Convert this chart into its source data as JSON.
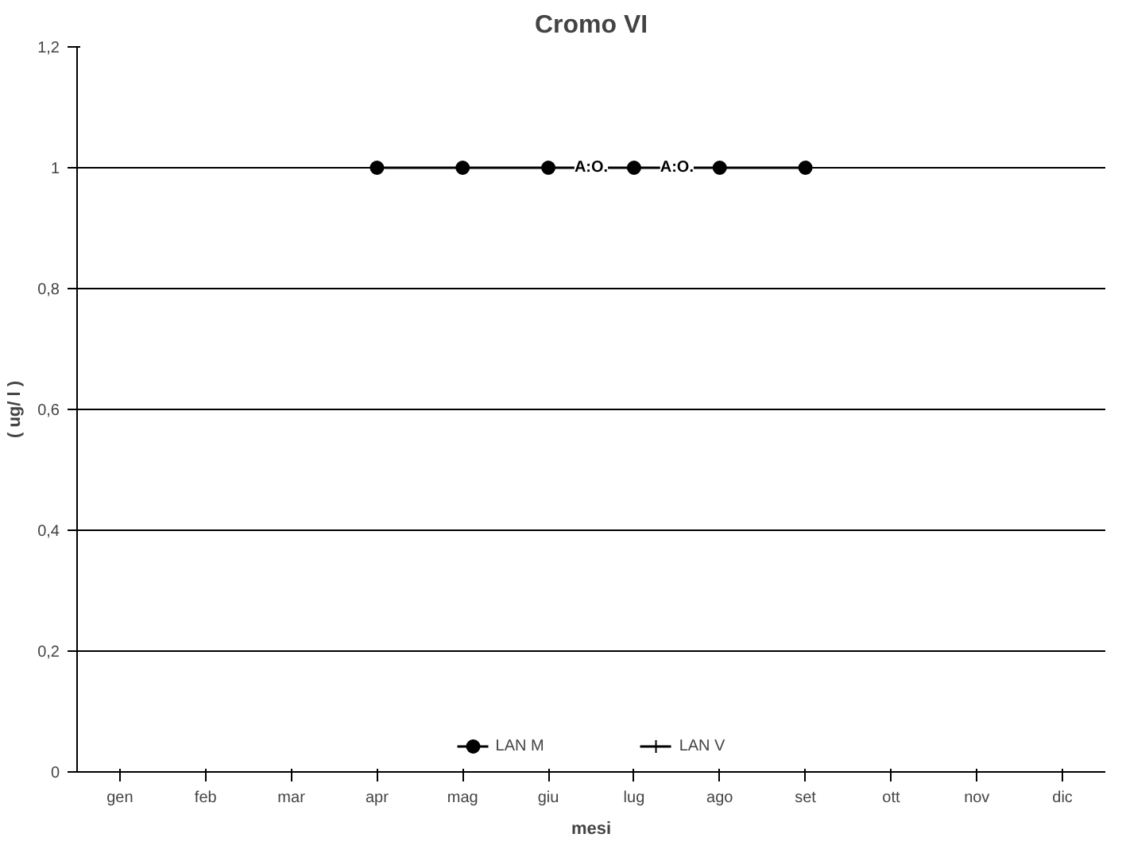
{
  "chart_data": {
    "type": "line",
    "title": "Cromo VI",
    "xlabel": "mesi",
    "ylabel": "( ug/ l )",
    "categories": [
      "gen",
      "feb",
      "mar",
      "apr",
      "mag",
      "giu",
      "lug",
      "ago",
      "set",
      "ott",
      "nov",
      "dic"
    ],
    "series": [
      {
        "name": "LAN M",
        "color": "#000000",
        "marker": "circle",
        "values": [
          null,
          null,
          null,
          1,
          1,
          1,
          1,
          1,
          1,
          null,
          null,
          null
        ]
      },
      {
        "name": "LAN V",
        "color": "#000000",
        "marker": "cross",
        "values": [
          null,
          null,
          null,
          null,
          null,
          null,
          null,
          null,
          null,
          null,
          null,
          null
        ]
      }
    ],
    "ylim": [
      0,
      1.2
    ],
    "yticks": [
      {
        "value": 0,
        "label": "0"
      },
      {
        "value": 0.2,
        "label": "0,2"
      },
      {
        "value": 0.4,
        "label": "0,4"
      },
      {
        "value": 0.6,
        "label": "0,6"
      },
      {
        "value": 0.8,
        "label": "0,8"
      },
      {
        "value": 1,
        "label": "1"
      },
      {
        "value": 1.2,
        "label": "1,2"
      }
    ],
    "grid": "y",
    "legend": "bottom",
    "line_style": "solid",
    "annotations": [
      {
        "text": "A:O.",
        "x": "giu",
        "y": 1
      },
      {
        "text": "A:O.",
        "x": "lug",
        "y": 1
      }
    ]
  }
}
